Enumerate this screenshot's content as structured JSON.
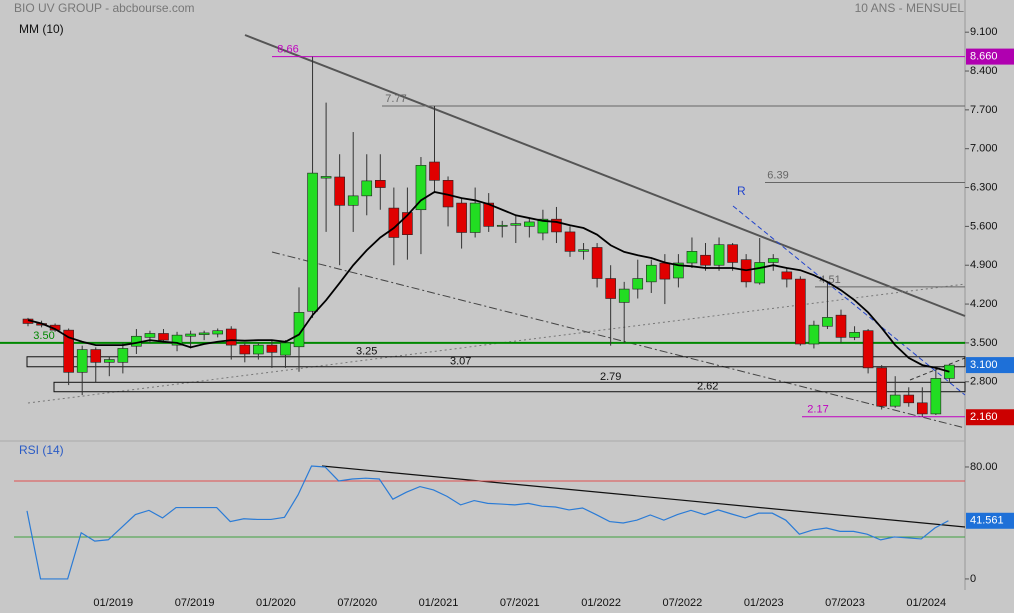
{
  "title": "BIO UV GROUP - abcbourse.com",
  "subtitle": "10 ANS - MENSUEL",
  "chart_data": [
    {
      "type": "candlestick",
      "categories": [
        null,
        null,
        null,
        null,
        null,
        null,
        "01/2019",
        null,
        null,
        null,
        null,
        null,
        "07/2019",
        null,
        null,
        null,
        null,
        null,
        "01/2020",
        null,
        null,
        null,
        null,
        null,
        "07/2020",
        null,
        null,
        null,
        null,
        null,
        "01/2021",
        null,
        null,
        null,
        null,
        null,
        "07/2021",
        null,
        null,
        null,
        null,
        null,
        "01/2022",
        null,
        null,
        null,
        null,
        null,
        "07/2022",
        null,
        null,
        null,
        null,
        null,
        "01/2023",
        null,
        null,
        null,
        null,
        null,
        "07/2023",
        null,
        null,
        null,
        null,
        null,
        "01/2024",
        null,
        null
      ],
      "open": [
        3.93,
        3.85,
        3.82,
        3.73,
        2.97,
        3.38,
        3.15,
        3.15,
        3.44,
        3.6,
        3.67,
        3.46,
        3.62,
        3.65,
        3.66,
        3.75,
        3.46,
        3.3,
        3.46,
        3.28,
        3.43,
        4.07,
        6.47,
        6.49,
        5.98,
        6.15,
        6.43,
        5.93,
        5.85,
        5.9,
        6.76,
        6.43,
        6.02,
        5.49,
        6.02,
        5.6,
        5.62,
        5.6,
        5.48,
        5.73,
        5.5,
        5.15,
        5.22,
        4.66,
        4.23,
        4.47,
        4.6,
        4.94,
        4.67,
        4.94,
        5.08,
        4.9,
        5.27,
        5.0,
        4.58,
        4.95,
        4.78,
        4.65,
        3.48,
        3.8,
        4.0,
        3.6,
        3.72,
        3.05,
        2.36,
        2.56,
        2.42,
        2.22,
        2.86
      ],
      "high": [
        3.95,
        3.9,
        3.85,
        3.76,
        3.45,
        3.42,
        3.25,
        3.5,
        3.75,
        3.72,
        3.75,
        3.7,
        3.72,
        3.72,
        3.76,
        3.8,
        3.5,
        3.5,
        3.55,
        3.55,
        4.5,
        8.66,
        7.83,
        6.9,
        7.3,
        6.9,
        6.9,
        6.3,
        6.3,
        6.85,
        7.77,
        6.5,
        6.1,
        6.3,
        6.2,
        5.7,
        5.8,
        5.75,
        5.9,
        5.95,
        5.6,
        5.3,
        5.3,
        4.9,
        4.6,
        5.0,
        5.0,
        5.1,
        5.1,
        5.4,
        5.3,
        5.4,
        5.3,
        5.1,
        5.39,
        5.1,
        4.85,
        4.7,
        3.9,
        4.6,
        4.1,
        3.8,
        3.75,
        3.1,
        2.9,
        2.7,
        2.7,
        3.05,
        3.12
      ],
      "low": [
        3.8,
        3.78,
        3.7,
        2.74,
        2.56,
        2.78,
        2.9,
        2.95,
        3.3,
        3.5,
        3.5,
        3.35,
        3.4,
        3.55,
        3.6,
        3.2,
        3.15,
        3.2,
        3.05,
        3.05,
        2.98,
        3.95,
        5.5,
        4.9,
        5.5,
        5.8,
        5.9,
        4.9,
        5.0,
        5.1,
        6.2,
        5.6,
        5.2,
        5.4,
        5.5,
        5.4,
        5.3,
        5.4,
        5.35,
        5.3,
        5.05,
        5.0,
        4.5,
        3.45,
        3.5,
        4.3,
        4.4,
        4.2,
        4.5,
        4.85,
        4.8,
        4.8,
        4.8,
        4.5,
        4.55,
        4.8,
        4.5,
        3.45,
        3.4,
        3.75,
        3.5,
        3.55,
        2.95,
        2.3,
        2.33,
        2.35,
        2.17,
        2.2,
        2.8
      ],
      "close": [
        3.85,
        3.82,
        3.73,
        2.97,
        3.38,
        3.15,
        3.2,
        3.4,
        3.62,
        3.67,
        3.55,
        3.64,
        3.66,
        3.68,
        3.72,
        3.46,
        3.3,
        3.46,
        3.33,
        3.5,
        4.05,
        6.56,
        6.5,
        5.98,
        6.15,
        6.42,
        6.3,
        5.4,
        5.45,
        6.7,
        6.43,
        5.95,
        5.49,
        6.02,
        5.6,
        5.62,
        5.65,
        5.68,
        5.73,
        5.5,
        5.15,
        5.18,
        4.66,
        4.3,
        4.47,
        4.66,
        4.9,
        4.65,
        4.94,
        5.15,
        4.9,
        5.27,
        4.95,
        4.6,
        4.95,
        5.02,
        4.65,
        3.48,
        3.82,
        3.96,
        3.6,
        3.69,
        3.05,
        2.36,
        2.56,
        2.42,
        2.22,
        2.86,
        3.1
      ],
      "up_color": "#22dd22",
      "down_color": "#e00000",
      "series": [
        {
          "name": "MM (10)",
          "color": "#000000",
          "values": [
            3.91,
            3.85,
            3.75,
            3.6,
            3.52,
            3.46,
            3.46,
            3.46,
            3.5,
            3.55,
            3.52,
            3.5,
            3.42,
            3.48,
            3.52,
            3.55,
            3.54,
            3.55,
            3.55,
            3.52,
            3.65,
            4.0,
            4.27,
            4.58,
            4.9,
            5.17,
            5.4,
            5.57,
            5.8,
            6.07,
            6.22,
            6.17,
            6.11,
            6.07,
            6.0,
            5.9,
            5.8,
            5.75,
            5.7,
            5.68,
            5.62,
            5.57,
            5.45,
            5.26,
            5.14,
            5.08,
            5.03,
            4.95,
            4.9,
            4.88,
            4.85,
            4.85,
            4.85,
            4.81,
            4.85,
            4.9,
            4.85,
            4.81,
            4.72,
            4.6,
            4.45,
            4.27,
            4.05,
            3.77,
            3.46,
            3.23,
            3.1,
            3.05,
            2.98
          ]
        }
      ],
      "ylim": [
        1.75,
        9.68
      ],
      "yticks": [
        {
          "value": 9.1,
          "label": "9.100"
        },
        {
          "value": 8.4,
          "label": "8.400"
        },
        {
          "value": 7.7,
          "label": "7.700"
        },
        {
          "value": 7.0,
          "label": "7.000"
        },
        {
          "value": 6.3,
          "label": "6.300"
        },
        {
          "value": 5.6,
          "label": "5.600"
        },
        {
          "value": 4.9,
          "label": "4.900"
        },
        {
          "value": 4.2,
          "label": "4.200"
        },
        {
          "value": 3.5,
          "label": "3.500"
        },
        {
          "value": 2.8,
          "label": "2.800"
        }
      ],
      "levels": [
        {
          "value": 8.66,
          "label": "8.66",
          "color": "#c000c0"
        },
        {
          "value": 7.77,
          "label": "7.77",
          "color": "#666666"
        },
        {
          "value": 6.39,
          "label": "6.39",
          "color": "#666666"
        },
        {
          "value": 4.51,
          "label": "4.51",
          "color": "#666666"
        },
        {
          "value": 3.5,
          "label": "3.50",
          "color": "#008800"
        },
        {
          "value": 2.17,
          "label": "2.17",
          "color": "#c000c0"
        }
      ],
      "zones": [
        {
          "top": 3.25,
          "bottom": 3.07,
          "top_label": "3.25",
          "bottom_label": "3.07"
        },
        {
          "top": 2.79,
          "bottom": 2.62,
          "top_label": "2.79",
          "bottom_label": "2.62"
        }
      ],
      "trend_label": "R",
      "price_markers": [
        {
          "value": 8.66,
          "label": "8.660",
          "color": "#b000b0"
        },
        {
          "value": 3.1,
          "label": "3.100",
          "color": "#1e70d8"
        },
        {
          "value": 2.16,
          "label": "2.160",
          "color": "#cc0000"
        }
      ]
    },
    {
      "type": "line",
      "series": [
        {
          "name": "RSI (14)",
          "color": "#2a7bd6",
          "values": [
            48.6,
            0,
            0,
            0,
            33,
            27,
            28,
            37,
            46,
            49,
            43.6,
            51,
            51,
            51,
            51,
            41,
            43,
            42.5,
            42.5,
            44,
            60,
            80.7,
            80,
            70,
            71.4,
            72,
            71.4,
            57,
            62,
            66,
            63.6,
            59,
            52.9,
            56,
            54,
            53.5,
            52.9,
            54,
            52,
            51.4,
            49.3,
            50.7,
            46,
            41,
            40,
            42,
            45.7,
            42,
            46,
            49,
            46,
            49.3,
            46.4,
            43.6,
            47,
            47,
            42,
            32,
            35,
            36.4,
            34,
            34,
            32,
            27.9,
            30,
            29.3,
            28.6,
            36.4,
            41.561
          ]
        }
      ],
      "ylim": [
        -7.9,
        95.7
      ],
      "yticks": [
        {
          "value": 80,
          "label": "80.00"
        },
        0
      ],
      "bands": [
        {
          "value": 70,
          "color": "#e05050"
        },
        {
          "value": 30,
          "color": "#40a040"
        }
      ],
      "last_label": {
        "value": 41.561,
        "label": "41.561",
        "color": "#1e70d8"
      }
    }
  ]
}
